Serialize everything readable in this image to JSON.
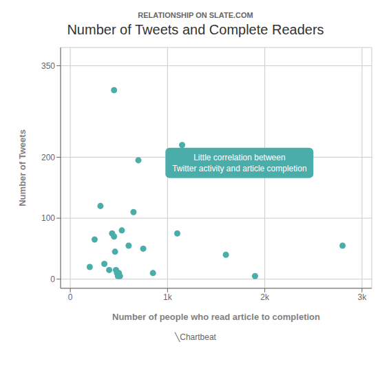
{
  "chart_data": {
    "type": "scatter",
    "title": "Number of Tweets and Complete Readers",
    "subtitle": "RELATIONSHIP ON SLATE.COM",
    "xlabel": "Number of people who read article to completion",
    "ylabel": "Number of Tweets",
    "annotation": [
      "Little correlation between",
      "Twitter activity and article completion"
    ],
    "footer": "╲Chartbeat",
    "x": [
      200,
      250,
      310,
      350,
      400,
      430,
      450,
      460,
      470,
      480,
      490,
      500,
      510,
      530,
      600,
      650,
      700,
      750,
      850,
      1100,
      1150,
      1600,
      1900,
      2800,
      450
    ],
    "values": [
      20,
      65,
      120,
      25,
      15,
      75,
      70,
      45,
      15,
      10,
      5,
      10,
      5,
      80,
      55,
      110,
      195,
      50,
      10,
      75,
      220,
      40,
      5,
      55,
      310
    ],
    "color": "#4aadaa",
    "xlim": [
      -100,
      3100
    ],
    "ylim": [
      -15,
      380
    ],
    "xticks": [
      0,
      {
        "value": 1000,
        "label": "1k"
      },
      {
        "value": 2000,
        "label": "2k"
      },
      {
        "value": 3000,
        "label": "3k"
      }
    ],
    "yticks": [
      0,
      100,
      200,
      350
    ],
    "grid": true
  }
}
